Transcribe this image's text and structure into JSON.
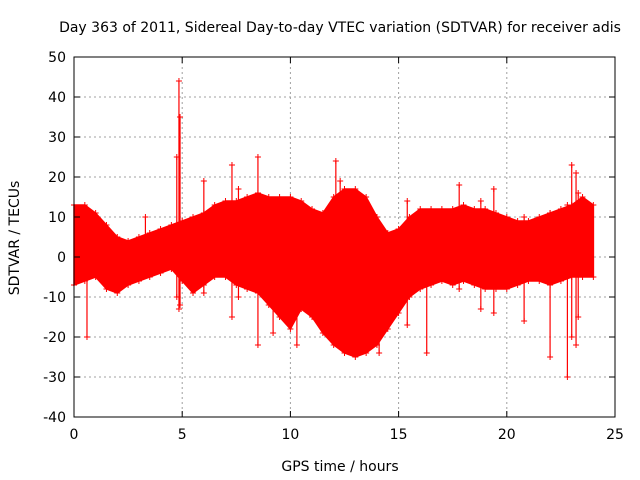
{
  "chart_data": {
    "type": "scatter",
    "title": "Day 363 of 2011, Sidereal Day-to-day VTEC variation (SDTVAR) for receiver adis",
    "xlabel": "GPS time / hours",
    "ylabel": "SDTVAR / TECUs",
    "xlim": [
      0,
      25
    ],
    "ylim": [
      -40,
      50
    ],
    "xticks": [
      0,
      5,
      10,
      15,
      20,
      25
    ],
    "yticks": [
      -40,
      -30,
      -20,
      -10,
      0,
      10,
      20,
      30,
      40,
      50
    ],
    "xtick_labels": [
      "0",
      "5",
      "10",
      "15",
      "20",
      "25"
    ],
    "ytick_labels": [
      "-40",
      "-30",
      "-20",
      "-10",
      "0",
      "10",
      "20",
      "30",
      "40",
      "50"
    ],
    "grid": true,
    "marker": "+",
    "series_color": "#ff0000",
    "series": [
      {
        "name": "SDTVAR",
        "band": {
          "x": [
            0,
            0.5,
            1,
            1.5,
            2,
            2.5,
            3,
            3.5,
            4,
            4.5,
            5,
            5.5,
            6,
            6.5,
            7,
            7.5,
            8,
            8.5,
            9,
            9.5,
            10,
            10.5,
            11,
            11.5,
            12,
            12.5,
            13,
            13.5,
            14,
            14.5,
            15,
            15.5,
            16,
            16.5,
            17,
            17.5,
            18,
            18.5,
            19,
            19.5,
            20,
            20.5,
            21,
            21.5,
            22,
            22.5,
            23,
            23.5,
            24
          ],
          "upper": [
            13,
            13,
            11,
            8,
            5,
            4,
            5,
            6,
            7,
            8,
            9,
            10,
            11,
            13,
            14,
            14,
            15,
            16,
            15,
            15,
            15,
            14,
            12,
            11,
            15,
            17,
            17,
            15,
            10,
            6,
            7,
            10,
            12,
            12,
            12,
            12,
            13,
            12,
            12,
            11,
            10,
            9,
            9,
            10,
            11,
            12,
            13,
            15,
            13
          ],
          "lower": [
            -7,
            -6,
            -5,
            -8,
            -9,
            -7,
            -6,
            -5,
            -4,
            -3,
            -6,
            -9,
            -7,
            -5,
            -5,
            -7,
            -8,
            -9,
            -12,
            -15,
            -18,
            -13,
            -15,
            -19,
            -22,
            -24,
            -25,
            -24,
            -22,
            -18,
            -14,
            -10,
            -8,
            -7,
            -6,
            -7,
            -6,
            -7,
            -8,
            -8,
            -8,
            -7,
            -6,
            -6,
            -7,
            -6,
            -5,
            -5,
            -5
          ]
        },
        "spikes": [
          {
            "x": 0.6,
            "lo": -20,
            "hi": 1
          },
          {
            "x": 4.85,
            "lo": -13,
            "hi": 44
          },
          {
            "x": 4.9,
            "lo": -12,
            "hi": 35
          },
          {
            "x": 4.75,
            "lo": -10,
            "hi": 25
          },
          {
            "x": 3.3,
            "lo": -3,
            "hi": 10
          },
          {
            "x": 6.0,
            "lo": -9,
            "hi": 19
          },
          {
            "x": 7.3,
            "lo": -15,
            "hi": 23
          },
          {
            "x": 7.6,
            "lo": -10,
            "hi": 17
          },
          {
            "x": 8.5,
            "lo": -22,
            "hi": 25
          },
          {
            "x": 9.2,
            "lo": -19,
            "hi": 12
          },
          {
            "x": 10.3,
            "lo": -22,
            "hi": 12
          },
          {
            "x": 12.1,
            "lo": -10,
            "hi": 24
          },
          {
            "x": 12.3,
            "lo": -8,
            "hi": 19
          },
          {
            "x": 14.1,
            "lo": -24,
            "hi": 6
          },
          {
            "x": 15.4,
            "lo": -17,
            "hi": 14
          },
          {
            "x": 16.3,
            "lo": -24,
            "hi": 9
          },
          {
            "x": 17.8,
            "lo": -8,
            "hi": 18
          },
          {
            "x": 18.8,
            "lo": -13,
            "hi": 14
          },
          {
            "x": 19.4,
            "lo": -14,
            "hi": 17
          },
          {
            "x": 20.8,
            "lo": -16,
            "hi": 10
          },
          {
            "x": 22.0,
            "lo": -25,
            "hi": 11
          },
          {
            "x": 22.8,
            "lo": -30,
            "hi": 13
          },
          {
            "x": 23.0,
            "lo": -20,
            "hi": 23
          },
          {
            "x": 23.2,
            "lo": -22,
            "hi": 21
          },
          {
            "x": 23.3,
            "lo": -15,
            "hi": 16
          }
        ]
      }
    ]
  }
}
